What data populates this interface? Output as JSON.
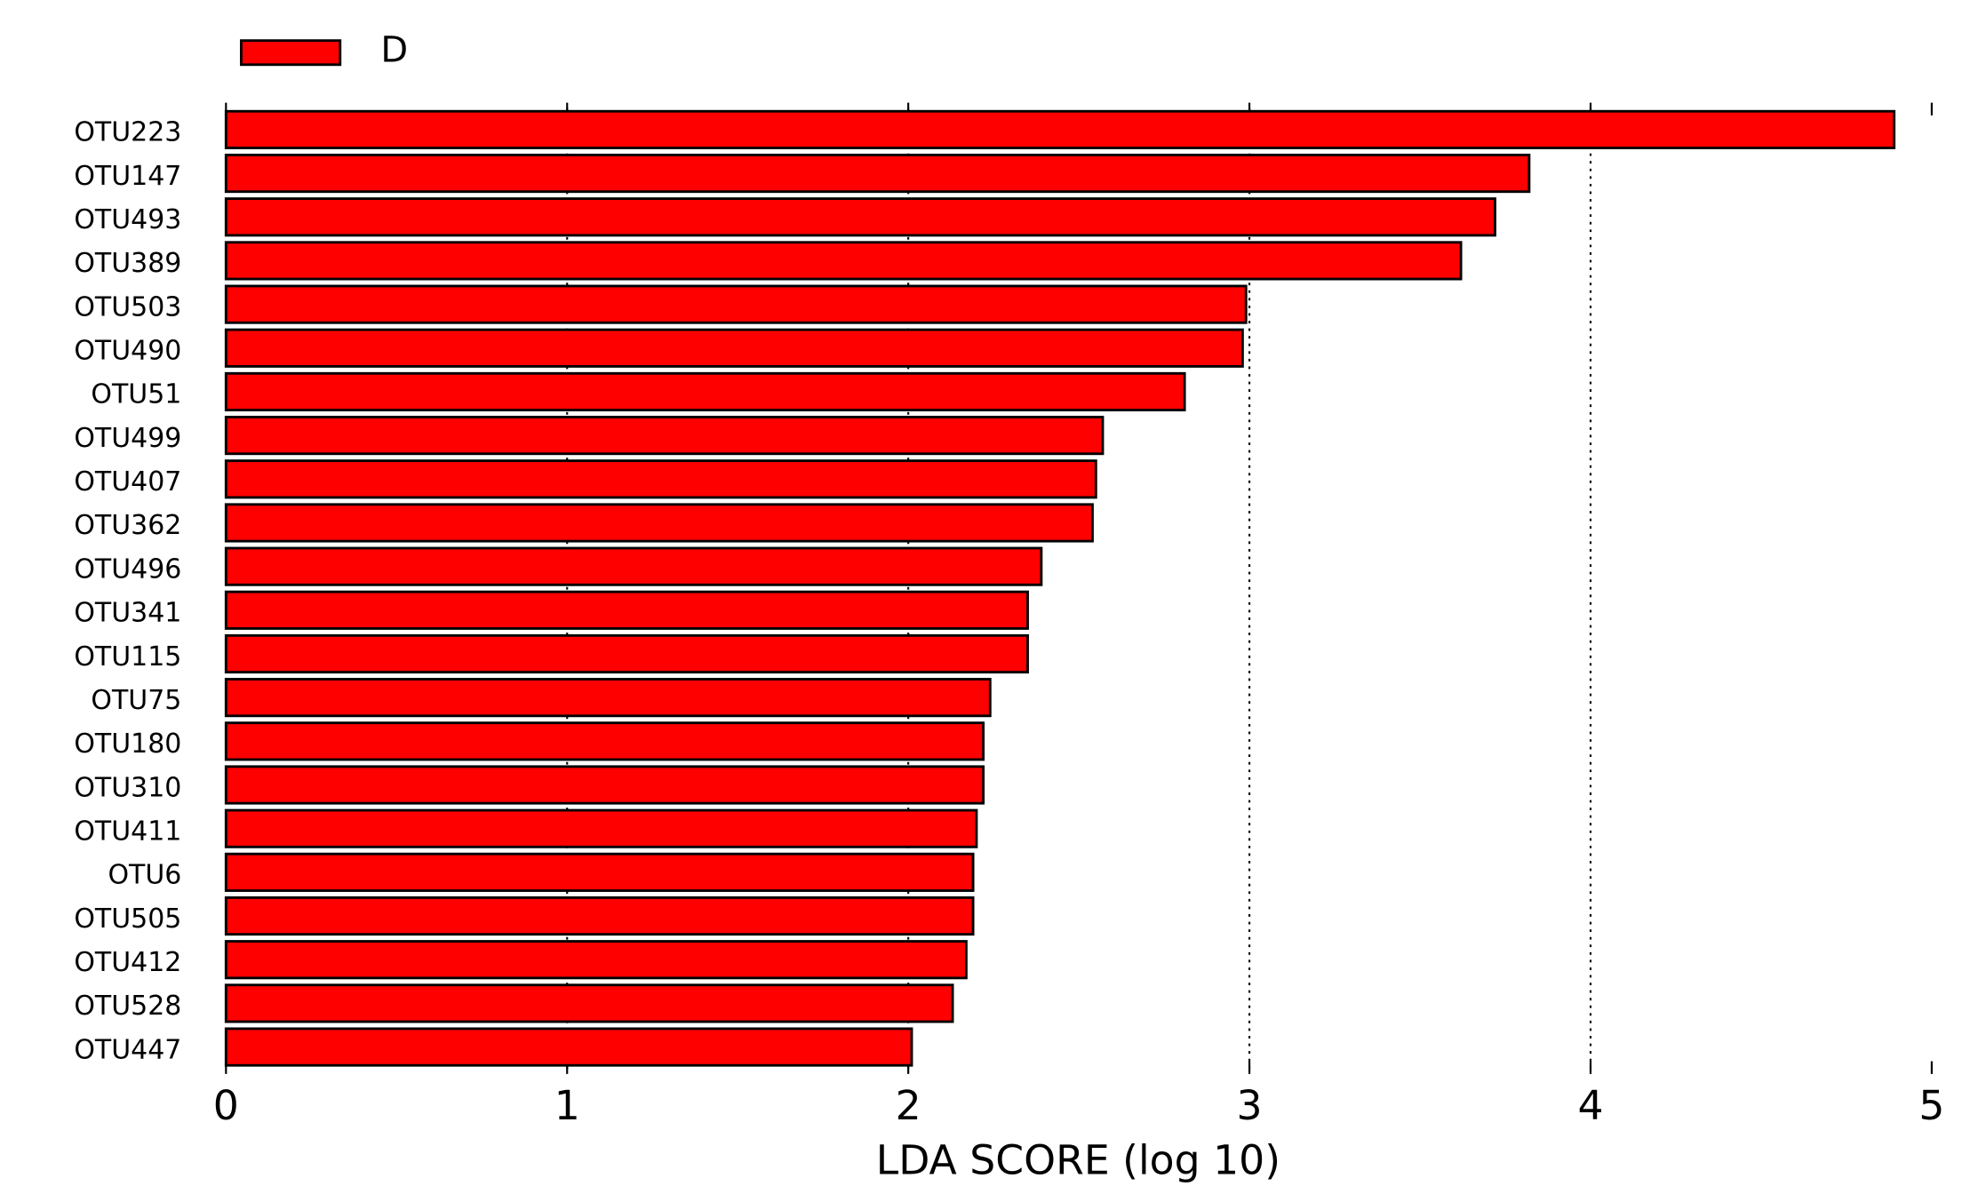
{
  "chart_data": {
    "type": "bar",
    "orientation": "horizontal",
    "xlabel": "LDA SCORE (log 10)",
    "categories": [
      "OTU223",
      "OTU147",
      "OTU493",
      "OTU389",
      "OTU503",
      "OTU490",
      "OTU51",
      "OTU499",
      "OTU407",
      "OTU362",
      "OTU496",
      "OTU341",
      "OTU115",
      "OTU75",
      "OTU180",
      "OTU310",
      "OTU411",
      "OTU6",
      "OTU505",
      "OTU412",
      "OTU528",
      "OTU447"
    ],
    "series": [
      {
        "name": "D",
        "color": "#ff0000",
        "values": [
          4.89,
          3.82,
          3.72,
          3.62,
          2.99,
          2.98,
          2.81,
          2.57,
          2.55,
          2.54,
          2.39,
          2.35,
          2.35,
          2.24,
          2.22,
          2.22,
          2.2,
          2.19,
          2.19,
          2.17,
          2.13,
          2.01
        ]
      }
    ],
    "xlim": [
      0,
      5
    ],
    "xticks": [
      0,
      1,
      2,
      3,
      4,
      5
    ],
    "grid": true,
    "legend": "upper left"
  }
}
